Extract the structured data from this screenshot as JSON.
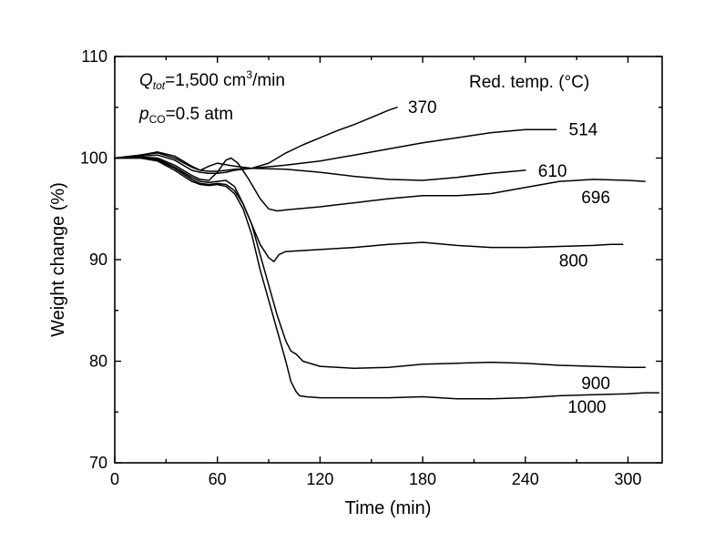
{
  "chart_data": {
    "type": "line",
    "xlabel": "Time (min)",
    "ylabel": "Weight change (%)",
    "xlim": [
      0,
      320
    ],
    "ylim": [
      70,
      110
    ],
    "xticks": [
      0,
      60,
      120,
      180,
      240,
      300
    ],
    "yticks": [
      70,
      80,
      90,
      100,
      110
    ],
    "annotations": {
      "flow_symbol": "Q",
      "flow_subscript": "tot",
      "flow_text": "=1,500 cm",
      "flow_sup": "3",
      "flow_unit": "/min",
      "pressure_symbol": "p",
      "pressure_subscript": "CO",
      "pressure_text": "=0.5 atm",
      "legend_title": "Red. temp. (°C)"
    },
    "series": [
      {
        "name": "370",
        "x": [
          0,
          15,
          25,
          35,
          45,
          50,
          55,
          60,
          65,
          70,
          80,
          90,
          100,
          110,
          120,
          130,
          140,
          150,
          160,
          165
        ],
        "y": [
          100,
          100.2,
          100.3,
          99.8,
          98.8,
          98.6,
          98.5,
          98.5,
          98.6,
          98.8,
          99.0,
          99.5,
          100.5,
          101.3,
          102.0,
          102.7,
          103.3,
          104.0,
          104.7,
          105.0
        ]
      },
      {
        "name": "514",
        "x": [
          0,
          15,
          25,
          35,
          45,
          50,
          55,
          60,
          70,
          80,
          100,
          120,
          140,
          160,
          180,
          200,
          220,
          240,
          250,
          258
        ],
        "y": [
          100,
          100.3,
          100.6,
          100.2,
          99.2,
          98.8,
          98.7,
          98.7,
          98.9,
          99.0,
          99.3,
          99.7,
          100.3,
          100.9,
          101.5,
          102.0,
          102.5,
          102.8,
          102.8,
          102.8
        ]
      },
      {
        "name": "610",
        "x": [
          0,
          15,
          25,
          35,
          45,
          50,
          55,
          60,
          70,
          80,
          100,
          120,
          140,
          160,
          180,
          200,
          220,
          240
        ],
        "y": [
          100,
          100.3,
          100.5,
          100.0,
          99.1,
          98.8,
          99.2,
          99.5,
          99.2,
          99.0,
          98.9,
          98.6,
          98.2,
          97.9,
          97.8,
          98.1,
          98.5,
          98.8
        ]
      },
      {
        "name": "696",
        "x": [
          0,
          15,
          25,
          35,
          45,
          50,
          55,
          60,
          65,
          68,
          72,
          78,
          85,
          90,
          95,
          100,
          120,
          140,
          160,
          180,
          200,
          220,
          240,
          260,
          280,
          300,
          310
        ],
        "y": [
          100,
          100.1,
          100.0,
          99.3,
          98.3,
          97.9,
          97.8,
          98.6,
          99.8,
          100.0,
          99.5,
          98.0,
          96.0,
          95.0,
          94.8,
          94.9,
          95.2,
          95.6,
          96.0,
          96.3,
          96.3,
          96.5,
          97.1,
          97.7,
          97.9,
          97.8,
          97.7
        ]
      },
      {
        "name": "800",
        "x": [
          0,
          15,
          25,
          35,
          45,
          50,
          55,
          60,
          65,
          70,
          75,
          80,
          85,
          90,
          93,
          96,
          100,
          120,
          140,
          160,
          180,
          200,
          220,
          240,
          260,
          280,
          290,
          297
        ],
        "y": [
          100,
          100.1,
          99.9,
          99.1,
          98.1,
          97.7,
          97.6,
          97.7,
          97.8,
          97.2,
          95.5,
          93.5,
          91.5,
          90.2,
          89.8,
          90.5,
          90.8,
          91.0,
          91.2,
          91.5,
          91.7,
          91.4,
          91.2,
          91.2,
          91.3,
          91.4,
          91.5,
          91.5
        ]
      },
      {
        "name": "900",
        "x": [
          0,
          15,
          25,
          35,
          45,
          50,
          55,
          60,
          65,
          70,
          75,
          80,
          85,
          90,
          95,
          100,
          103,
          106,
          110,
          120,
          140,
          160,
          180,
          200,
          220,
          240,
          260,
          280,
          300,
          310
        ],
        "y": [
          100,
          100.0,
          99.8,
          99.0,
          97.9,
          97.5,
          97.4,
          97.5,
          97.4,
          96.8,
          95.5,
          93.5,
          90.5,
          87.5,
          84.5,
          82.0,
          81.0,
          80.7,
          80.0,
          79.5,
          79.3,
          79.4,
          79.7,
          79.8,
          79.9,
          79.8,
          79.6,
          79.5,
          79.4,
          79.4
        ]
      },
      {
        "name": "1000",
        "x": [
          0,
          15,
          25,
          35,
          45,
          50,
          55,
          60,
          65,
          70,
          75,
          80,
          85,
          90,
          95,
          100,
          103,
          106,
          108,
          112,
          120,
          140,
          160,
          180,
          200,
          220,
          240,
          260,
          280,
          300,
          310,
          318
        ],
        "y": [
          100,
          100.0,
          99.7,
          98.8,
          97.7,
          97.4,
          97.3,
          97.4,
          97.2,
          96.5,
          95.0,
          92.5,
          89.0,
          86.0,
          83.0,
          80.0,
          78.0,
          77.0,
          76.6,
          76.5,
          76.4,
          76.4,
          76.4,
          76.5,
          76.3,
          76.3,
          76.4,
          76.6,
          76.7,
          76.8,
          76.9,
          76.9
        ]
      }
    ]
  }
}
